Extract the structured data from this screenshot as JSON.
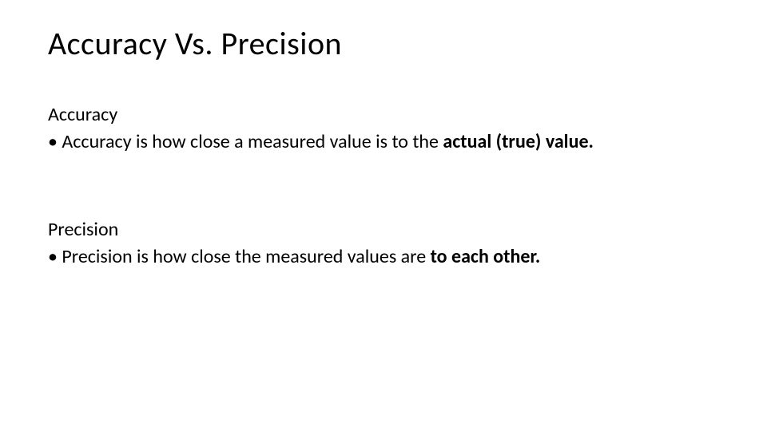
{
  "slide": {
    "title": "Accuracy Vs. Precision",
    "sections": [
      {
        "heading": "Accuracy",
        "bullet_prefix": "• Accuracy is how close a measured value is to the ",
        "bullet_bold": "actual (true) value."
      },
      {
        "heading": "Precision",
        "bullet_prefix": "• Precision is how close the measured values are ",
        "bullet_bold": "to each other."
      }
    ]
  },
  "style": {
    "background_color": "#ffffff",
    "text_color": "#000000",
    "title_fontsize": 40,
    "body_fontsize": 24,
    "font_family": "Calibri"
  }
}
